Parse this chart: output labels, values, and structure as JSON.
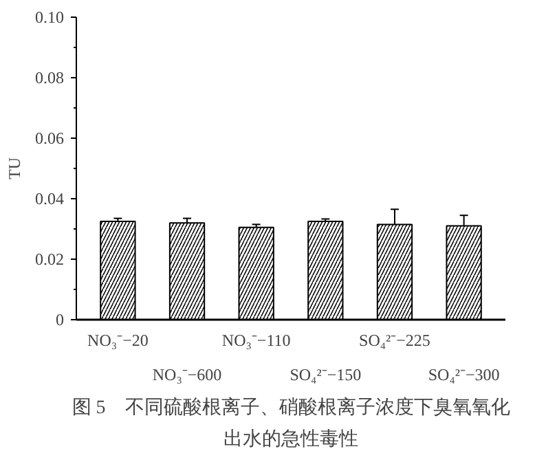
{
  "chart_data": {
    "type": "bar",
    "title": "图 5　不同硫酸根离子、硝酸根离子浓度下臭氧氧化出水的急性毒性",
    "ylabel": "TU",
    "categories": [
      "NO₃⁻−20",
      "NO₃⁻−600",
      "NO₃⁻−110",
      "SO₄²⁻−150",
      "SO₄²⁻−225",
      "SO₄²⁻−300"
    ],
    "values": [
      0.0325,
      0.032,
      0.0305,
      0.0325,
      0.0315,
      0.031
    ],
    "errors": [
      0.001,
      0.0015,
      0.001,
      0.0008,
      0.005,
      0.0035
    ],
    "color": "#ffffff",
    "ylim": [
      0,
      0.1
    ],
    "yticks": [
      {
        "value": 0,
        "label": "0"
      },
      {
        "value": 0.02,
        "label": "0.02"
      },
      {
        "value": 0.04,
        "label": "0.04"
      },
      {
        "value": 0.06,
        "label": "0.06"
      },
      {
        "value": 0.08,
        "label": "0.08"
      },
      {
        "value": 0.1,
        "label": "0.10"
      }
    ],
    "grid": false
  }
}
